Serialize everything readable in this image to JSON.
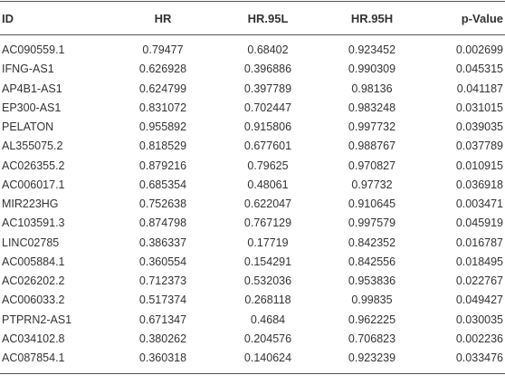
{
  "table": {
    "header": [
      "ID",
      "HR",
      "HR.95L",
      "HR.95H",
      "p-Value"
    ],
    "rows": [
      [
        "AC090559.1",
        "0.79477",
        "0.68402",
        "0.923452",
        "0.002699"
      ],
      [
        "IFNG-AS1",
        "0.626928",
        "0.396886",
        "0.990309",
        "0.045315"
      ],
      [
        "AP4B1-AS1",
        "0.624799",
        "0.397789",
        "0.98136",
        "0.041187"
      ],
      [
        "EP300-AS1",
        "0.831072",
        "0.702447",
        "0.983248",
        "0.031015"
      ],
      [
        "PELATON",
        "0.955892",
        "0.915806",
        "0.997732",
        "0.039035"
      ],
      [
        "AL355075.2",
        "0.818529",
        "0.677601",
        "0.988767",
        "0.037789"
      ],
      [
        "AC026355.2",
        "0.879216",
        "0.79625",
        "0.970827",
        "0.010915"
      ],
      [
        "AC006017.1",
        "0.685354",
        "0.48061",
        "0.97732",
        "0.036918"
      ],
      [
        "MIR223HG",
        "0.752638",
        "0.622047",
        "0.910645",
        "0.003471"
      ],
      [
        "AC103591.3",
        "0.874798",
        "0.767129",
        "0.997579",
        "0.045919"
      ],
      [
        "LINC02785",
        "0.386337",
        "0.17719",
        "0.842352",
        "0.016787"
      ],
      [
        "AC005884.1",
        "0.360554",
        "0.154291",
        "0.842556",
        "0.018495"
      ],
      [
        "AC026202.2",
        "0.712373",
        "0.532036",
        "0.953836",
        "0.022767"
      ],
      [
        "AC006033.2",
        "0.517374",
        "0.268118",
        "0.99835",
        "0.049427"
      ],
      [
        "PTPRN2-AS1",
        "0.671347",
        "0.4684",
        "0.962225",
        "0.030035"
      ],
      [
        "AC034102.8",
        "0.380262",
        "0.204576",
        "0.706823",
        "0.002236"
      ],
      [
        "AC087854.1",
        "0.360318",
        "0.140624",
        "0.923239",
        "0.033476"
      ]
    ]
  }
}
